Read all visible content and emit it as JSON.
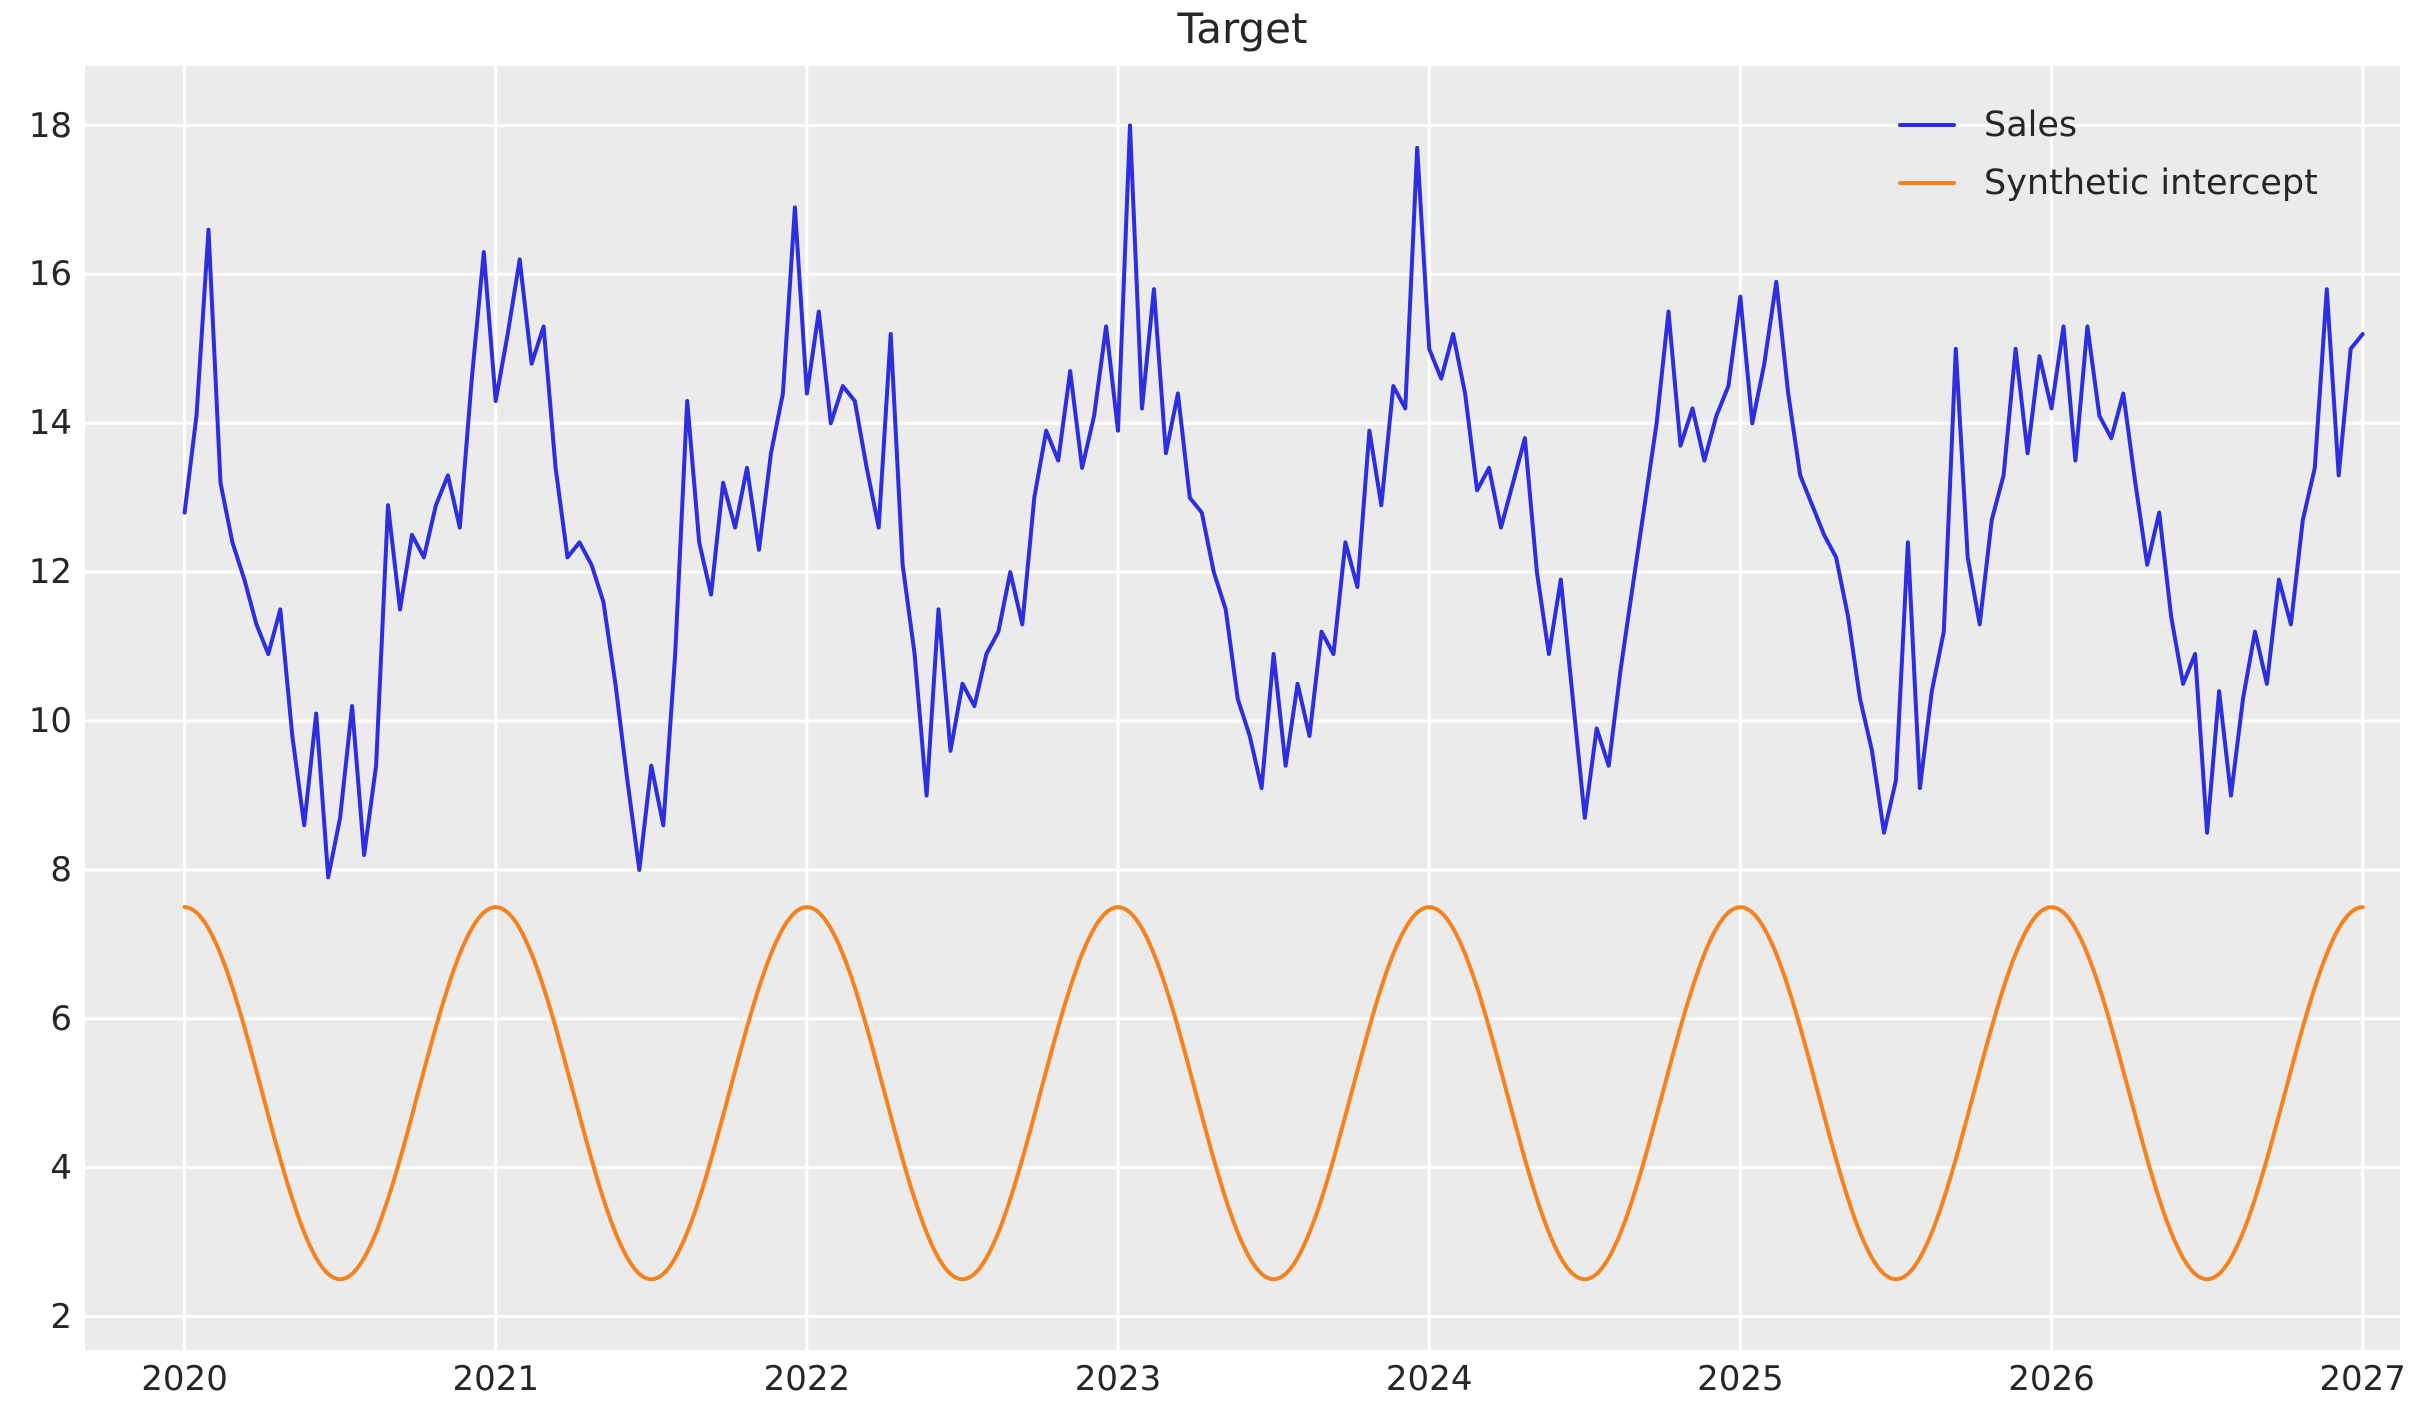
{
  "window": {
    "title": "Target"
  },
  "colors": {
    "figure_background": "#ffffff",
    "axes_background": "#ebebeb",
    "gridline": "#ffffff",
    "text": "#262626",
    "sales_line": "#2d2de1",
    "intercept_line": "#f5821f"
  },
  "chart_data": {
    "type": "line",
    "title": "Target",
    "xlabel": "",
    "ylabel": "",
    "grid": true,
    "legend_position": "upper right",
    "x_ticks": [
      2020,
      2021,
      2022,
      2023,
      2024,
      2025,
      2026,
      2027
    ],
    "y_ticks": [
      2,
      4,
      6,
      8,
      10,
      12,
      14,
      16,
      18
    ],
    "xlim": [
      2019.68,
      2027.12
    ],
    "ylim": [
      1.55,
      18.8
    ],
    "series": [
      {
        "name": "Sales",
        "color": "#2d2de1",
        "kind": "sampled",
        "x_start": 2020,
        "samples_per_year": 26,
        "values": [
          12.8,
          14.1,
          16.6,
          13.2,
          12.4,
          11.9,
          11.3,
          10.9,
          11.5,
          9.8,
          8.6,
          10.1,
          7.9,
          8.7,
          10.2,
          8.2,
          9.4,
          12.9,
          11.5,
          12.5,
          12.2,
          12.9,
          13.3,
          12.6,
          14.6,
          16.3,
          14.3,
          15.2,
          16.2,
          14.8,
          15.3,
          13.4,
          12.2,
          12.4,
          12.1,
          11.6,
          10.5,
          9.2,
          8.0,
          9.4,
          8.6,
          10.9,
          14.3,
          12.4,
          11.7,
          13.2,
          12.6,
          13.4,
          12.3,
          13.6,
          14.4,
          16.9,
          14.4,
          15.5,
          14.0,
          14.5,
          14.3,
          13.4,
          12.6,
          15.2,
          12.1,
          10.9,
          9.0,
          11.5,
          9.6,
          10.5,
          10.2,
          10.9,
          11.2,
          12.0,
          11.3,
          13.0,
          13.9,
          13.5,
          14.7,
          13.4,
          14.1,
          15.3,
          13.9,
          18.0,
          14.2,
          15.8,
          13.6,
          14.4,
          13.0,
          12.8,
          12.0,
          11.5,
          10.3,
          9.8,
          9.1,
          10.9,
          9.4,
          10.5,
          9.8,
          11.2,
          10.9,
          12.4,
          11.8,
          13.9,
          12.9,
          14.5,
          14.2,
          17.7,
          15.0,
          14.6,
          15.2,
          14.4,
          13.1,
          13.4,
          12.6,
          13.2,
          13.8,
          12.0,
          10.9,
          11.9,
          10.3,
          8.7,
          9.9,
          9.4,
          10.7,
          11.8,
          12.9,
          14.0,
          15.5,
          13.7,
          14.2,
          13.5,
          14.1,
          14.5,
          15.7,
          14.0,
          14.8,
          15.9,
          14.4,
          13.3,
          12.9,
          12.5,
          12.2,
          11.4,
          10.3,
          9.6,
          8.5,
          9.2,
          12.4,
          9.1,
          10.4,
          11.2,
          15.0,
          12.2,
          11.3,
          12.7,
          13.3,
          15.0,
          13.6,
          14.9,
          14.2,
          15.3,
          13.5,
          15.3,
          14.1,
          13.8,
          14.4,
          13.2,
          12.1,
          12.8,
          11.4,
          10.5,
          10.9,
          8.5,
          10.4,
          9.0,
          10.3,
          11.2,
          10.5,
          11.9,
          11.3,
          12.7,
          13.4,
          15.8,
          13.3,
          15.0,
          15.2
        ]
      },
      {
        "name": "Synthetic intercept",
        "color": "#f5821f",
        "kind": "sine",
        "mean": 5,
        "amplitude": 2.5,
        "period_years": 1,
        "phase": "maximum at each year start",
        "x_start": 2020,
        "x_end": 2027,
        "max_value": 7.5,
        "min_value": 2.5
      }
    ]
  }
}
